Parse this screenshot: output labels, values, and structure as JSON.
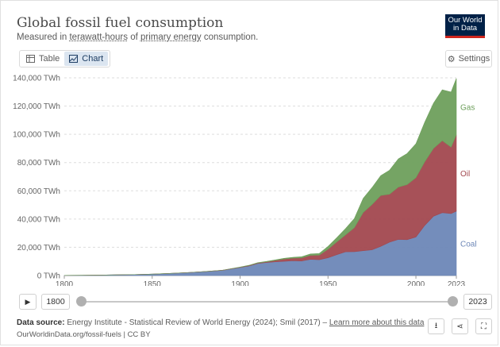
{
  "header": {
    "title": "Global fossil fuel consumption",
    "subtitle_pre": "Measured in ",
    "subtitle_u1": "terawatt-hours",
    "subtitle_mid": " of ",
    "subtitle_u2": "primary energy",
    "subtitle_post": " consumption.",
    "logo_line1": "Our World",
    "logo_line2": "in Data"
  },
  "toolbar": {
    "tab_table": "Table",
    "tab_chart": "Chart",
    "settings": "Settings"
  },
  "chart_data": {
    "type": "area",
    "stacked": true,
    "x": [
      1800,
      1810,
      1820,
      1830,
      1840,
      1850,
      1860,
      1870,
      1880,
      1890,
      1900,
      1905,
      1910,
      1915,
      1920,
      1925,
      1930,
      1935,
      1940,
      1945,
      1950,
      1955,
      1960,
      1965,
      1970,
      1975,
      1980,
      1985,
      1990,
      1995,
      2000,
      2005,
      2010,
      2015,
      2020,
      2023
    ],
    "series": [
      {
        "name": "Coal",
        "color": "#6d87b7",
        "values": [
          100,
          200,
          300,
          500,
          700,
          1000,
          1500,
          2100,
          2800,
          3700,
          5700,
          6800,
          8500,
          9200,
          9700,
          10100,
          10500,
          10300,
          11500,
          11200,
          12600,
          14800,
          16800,
          16900,
          17600,
          18200,
          20700,
          23600,
          25600,
          25400,
          27300,
          35500,
          42000,
          44500,
          43900,
          45600
        ]
      },
      {
        "name": "Oil",
        "color": "#a2484f",
        "values": [
          0,
          0,
          0,
          0,
          0,
          0,
          0,
          10,
          50,
          100,
          200,
          300,
          400,
          500,
          1000,
          1600,
          1800,
          2200,
          2800,
          3200,
          6000,
          9000,
          12000,
          17000,
          27000,
          32000,
          36000,
          34000,
          37000,
          39000,
          42000,
          45000,
          48000,
          51000,
          47000,
          54000
        ]
      },
      {
        "name": "Gas",
        "color": "#6e9f5c",
        "values": [
          0,
          0,
          0,
          0,
          0,
          0,
          0,
          0,
          0,
          0,
          100,
          150,
          200,
          300,
          400,
          500,
          600,
          800,
          1000,
          1200,
          2000,
          3000,
          4500,
          6500,
          10000,
          12000,
          14000,
          17000,
          20000,
          22000,
          24000,
          28000,
          32000,
          36000,
          39000,
          40000
        ]
      }
    ],
    "yticks": [
      "0 TWh",
      "20,000 TWh",
      "40,000 TWh",
      "60,000 TWh",
      "80,000 TWh",
      "100,000 TWh",
      "120,000 TWh",
      "140,000 TWh"
    ],
    "ylim": [
      0,
      140000
    ],
    "xticks": [
      "1800",
      "1850",
      "1900",
      "1950",
      "2000",
      "2023"
    ],
    "xlim": [
      1800,
      2023
    ],
    "grid": true,
    "legend": "right-inline"
  },
  "timeline": {
    "start": "1800",
    "end": "2023"
  },
  "footer": {
    "source_label": "Data source:",
    "source_text": " Energy Institute - Statistical Review of World Energy (2024); Smil (2017) – ",
    "source_link": "Learn more about this data",
    "url": "OurWorldinData.org/fossil-fuels | CC BY"
  }
}
